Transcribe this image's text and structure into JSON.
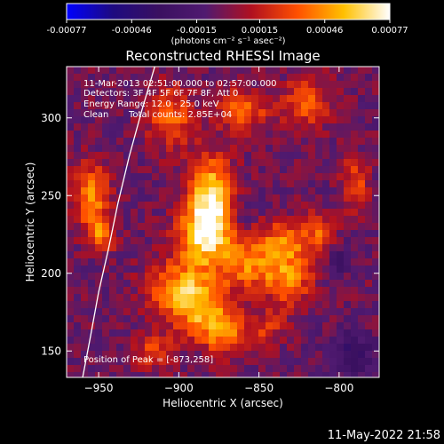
{
  "colorbar": {
    "tick_labels": [
      "-0.00077",
      "-0.00046",
      "-0.00015",
      "0.00015",
      "0.00046",
      "0.00077"
    ],
    "tick_values": [
      -0.00077,
      -0.00046,
      -0.00015,
      0.00015,
      0.00046,
      0.00077
    ],
    "range": [
      -0.00077,
      0.00077
    ],
    "unit_label": "(photons cm⁻² s⁻¹ asec⁻²)",
    "colormap": [
      "#0000ff",
      "#1e0a80",
      "#3a1060",
      "#501a70",
      "#b01020",
      "#ff5000",
      "#ffc000",
      "#ffffff"
    ]
  },
  "chart_data": {
    "type": "heatmap",
    "title": "Reconstructed RHESSI Image",
    "xlabel": "Heliocentric X (arcsec)",
    "ylabel": "Heliocentric Y (arcsec)",
    "xlim": [
      -970,
      -775
    ],
    "ylim": [
      133,
      333
    ],
    "x_ticks": [
      -950,
      -900,
      -850,
      -800
    ],
    "x_tick_labels": [
      "−950",
      "−900",
      "−850",
      "−800"
    ],
    "y_ticks": [
      150,
      200,
      250,
      300
    ],
    "y_tick_labels": [
      "150",
      "200",
      "250",
      "300"
    ],
    "annotations": [
      "11-Mar-2013 02:51:00.000 to 02:57:00.000",
      "Detectors: 3F 4F 5F 6F 7F 8F, Att 0",
      "Energy Range: 12.0 - 25.0 keV",
      "Clean",
      "Total counts: 2.85E+04"
    ],
    "peak_label": "Position of Peak = [-873,258]",
    "peak": [
      -873,
      258
    ],
    "limb_points": [
      [
        -960,
        133
      ],
      [
        -955,
        160
      ],
      [
        -950,
        188
      ],
      [
        -944,
        215
      ],
      [
        -938,
        245
      ],
      [
        -931,
        275
      ],
      [
        -923,
        305
      ],
      [
        -915,
        333
      ]
    ],
    "emission_blobs": [
      {
        "x": -880,
        "y": 248,
        "sx": 10,
        "sy": 18,
        "v": 0.00072
      },
      {
        "x": -885,
        "y": 222,
        "sx": 12,
        "sy": 14,
        "v": 0.00055
      },
      {
        "x": -900,
        "y": 190,
        "sx": 14,
        "sy": 12,
        "v": 0.0005
      },
      {
        "x": -885,
        "y": 175,
        "sx": 12,
        "sy": 12,
        "v": 0.00048
      },
      {
        "x": -870,
        "y": 160,
        "sx": 10,
        "sy": 10,
        "v": 0.0004
      },
      {
        "x": -855,
        "y": 205,
        "sx": 14,
        "sy": 12,
        "v": 0.00045
      },
      {
        "x": -835,
        "y": 220,
        "sx": 10,
        "sy": 10,
        "v": 0.0004
      },
      {
        "x": -830,
        "y": 195,
        "sx": 10,
        "sy": 12,
        "v": 0.00038
      },
      {
        "x": -812,
        "y": 225,
        "sx": 8,
        "sy": 10,
        "v": 0.00036
      },
      {
        "x": -955,
        "y": 250,
        "sx": 8,
        "sy": 14,
        "v": 0.0005
      },
      {
        "x": -948,
        "y": 225,
        "sx": 6,
        "sy": 8,
        "v": 0.00042
      },
      {
        "x": -905,
        "y": 300,
        "sx": 10,
        "sy": 14,
        "v": 0.0004
      },
      {
        "x": -860,
        "y": 305,
        "sx": 12,
        "sy": 10,
        "v": 0.00038
      },
      {
        "x": -820,
        "y": 310,
        "sx": 10,
        "sy": 12,
        "v": 0.00036
      },
      {
        "x": -790,
        "y": 258,
        "sx": 6,
        "sy": 12,
        "v": 0.00035
      },
      {
        "x": -915,
        "y": 150,
        "sx": 8,
        "sy": 8,
        "v": 0.00035
      },
      {
        "x": -845,
        "y": 165,
        "sx": 8,
        "sy": 8,
        "v": 0.00025
      }
    ],
    "negative_blobs": [
      {
        "x": -792,
        "y": 148,
        "sx": 10,
        "sy": 10,
        "v": -0.0003
      },
      {
        "x": -800,
        "y": 210,
        "sx": 6,
        "sy": 8,
        "v": -0.00022
      },
      {
        "x": -862,
        "y": 240,
        "sx": 6,
        "sy": 6,
        "v": -0.00018
      }
    ]
  },
  "footer": {
    "timestamp": "11-May-2022 21:58"
  }
}
